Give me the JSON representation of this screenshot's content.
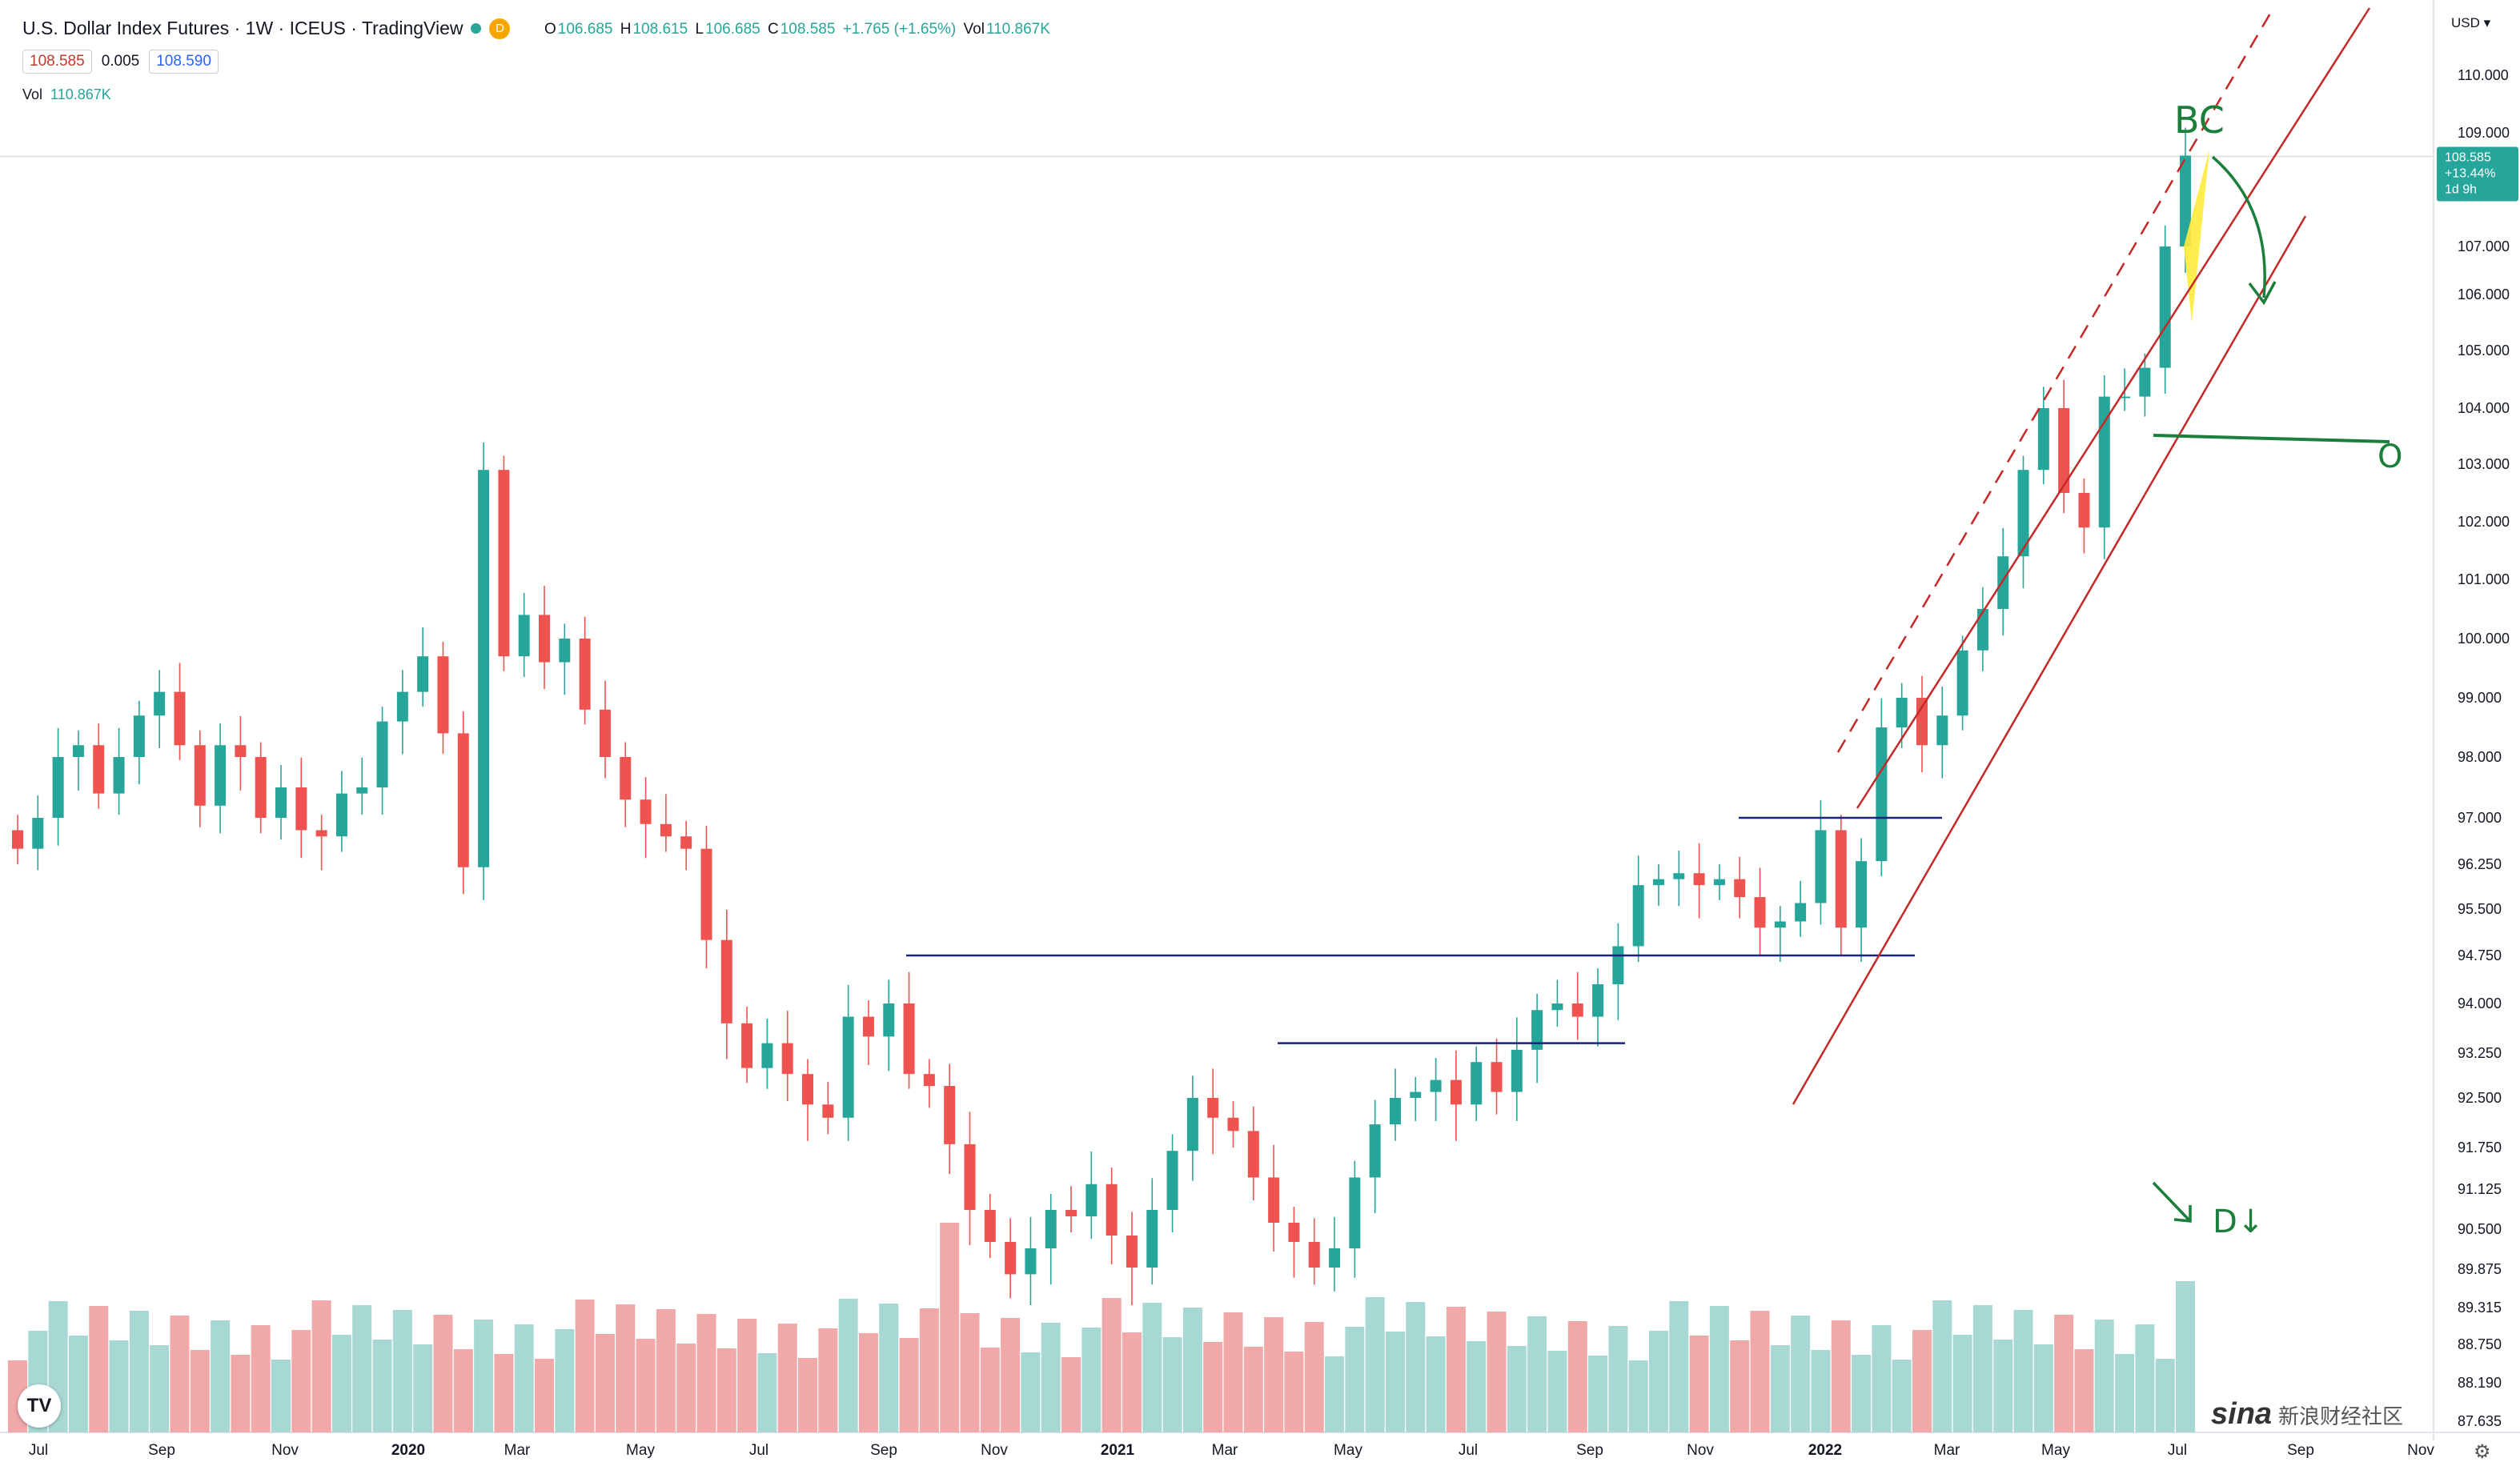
{
  "header": {
    "symbol": "U.S. Dollar Index Futures · 1W · ICEUS · TradingView",
    "d_badge": "D",
    "ohlc": {
      "o_label": "O",
      "o": "106.685",
      "h_label": "H",
      "h": "108.615",
      "l_label": "L",
      "l": "106.685",
      "c_label": "C",
      "c": "108.585",
      "chg": "+1.765 (+1.65%)",
      "vol_label": "Vol",
      "vol": "110.867K"
    },
    "sell": "108.585",
    "spread": "0.005",
    "buy": "108.590",
    "vol_label": "Vol",
    "vol_value": "110.867K"
  },
  "colors": {
    "up": "#26a69a",
    "down": "#ef5350",
    "up_vol": "#a8d8d4",
    "down_vol": "#f0a8a8",
    "hline": "#1a237e",
    "channel": "#c62828",
    "annot": "#1b7f3b",
    "highlight": "#ffeb3b"
  },
  "price_scale": {
    "currency": "USD",
    "labels": [
      "110.000",
      "109.000",
      "107.000",
      "106.000",
      "105.000",
      "104.000",
      "103.000",
      "102.000",
      "101.000",
      "100.000",
      "99.000",
      "98.000",
      "97.000",
      "96.250",
      "95.500",
      "94.750",
      "94.000",
      "93.250",
      "92.500",
      "91.750",
      "91.125",
      "90.500",
      "89.875",
      "89.315",
      "88.750",
      "88.190",
      "87.635"
    ],
    "last": {
      "price": "108.585",
      "change": "+13.44%",
      "countdown": "1d 9h"
    }
  },
  "time_axis": {
    "labels": [
      "Jul",
      "Sep",
      "Nov",
      "2020",
      "Mar",
      "May",
      "Jul",
      "Sep",
      "Nov",
      "2021",
      "Mar",
      "May",
      "Jul",
      "Sep",
      "Nov",
      "2022",
      "Mar",
      "May",
      "Jul",
      "Sep",
      "Nov"
    ]
  },
  "annotations": {
    "bc": "BC",
    "o": "O",
    "dl": "D↓"
  },
  "icons": {
    "logo": "tradingview-logo-icon",
    "settings": "gear-icon"
  },
  "watermark": {
    "brand": "sina",
    "text": "新浪财经社区"
  },
  "chart_data": {
    "type": "candlestick",
    "title": "U.S. Dollar Index Futures · 1W · ICEUS",
    "ylim": [
      87.6,
      110.5
    ],
    "x_labels": [
      "Jul 2019",
      "Sep",
      "Nov",
      "2020",
      "Mar",
      "May",
      "Jul",
      "Sep",
      "Nov",
      "2021",
      "Mar",
      "May",
      "Jul",
      "Sep",
      "Nov",
      "2022",
      "Mar",
      "May",
      "Jul",
      "Sep",
      "Nov"
    ],
    "candles_close": [
      96.5,
      97.0,
      98.0,
      98.2,
      97.4,
      98.0,
      98.7,
      99.1,
      98.2,
      97.2,
      98.2,
      98.0,
      97.0,
      97.5,
      96.8,
      96.7,
      97.4,
      97.5,
      98.6,
      99.1,
      99.7,
      98.4,
      96.2,
      102.9,
      99.7,
      100.4,
      99.6,
      100.0,
      98.8,
      98.0,
      97.3,
      96.9,
      96.7,
      96.5,
      95.0,
      93.7,
      93.0,
      93.4,
      92.9,
      92.4,
      92.2,
      93.8,
      93.5,
      94.0,
      92.9,
      92.7,
      91.8,
      90.8,
      90.3,
      89.8,
      90.2,
      90.8,
      90.7,
      91.2,
      90.4,
      89.9,
      90.8,
      91.7,
      92.5,
      92.2,
      92.0,
      91.3,
      90.6,
      90.3,
      89.9,
      90.2,
      91.3,
      92.1,
      92.5,
      92.6,
      92.8,
      92.4,
      93.1,
      92.6,
      93.3,
      93.9,
      94.0,
      93.8,
      94.3,
      94.9,
      95.9,
      96.0,
      96.1,
      95.9,
      96.0,
      95.7,
      95.2,
      95.3,
      95.6,
      96.8,
      95.2,
      96.3,
      98.5,
      99.0,
      98.2,
      98.7,
      99.8,
      100.5,
      101.4,
      102.9,
      104.0,
      102.5,
      101.9,
      104.2,
      104.2,
      104.7,
      107.0,
      108.6
    ],
    "horizontal_levels": [
      97.0,
      94.75,
      93.4
    ],
    "last_price": 108.585,
    "last_change_pct": 13.44
  }
}
